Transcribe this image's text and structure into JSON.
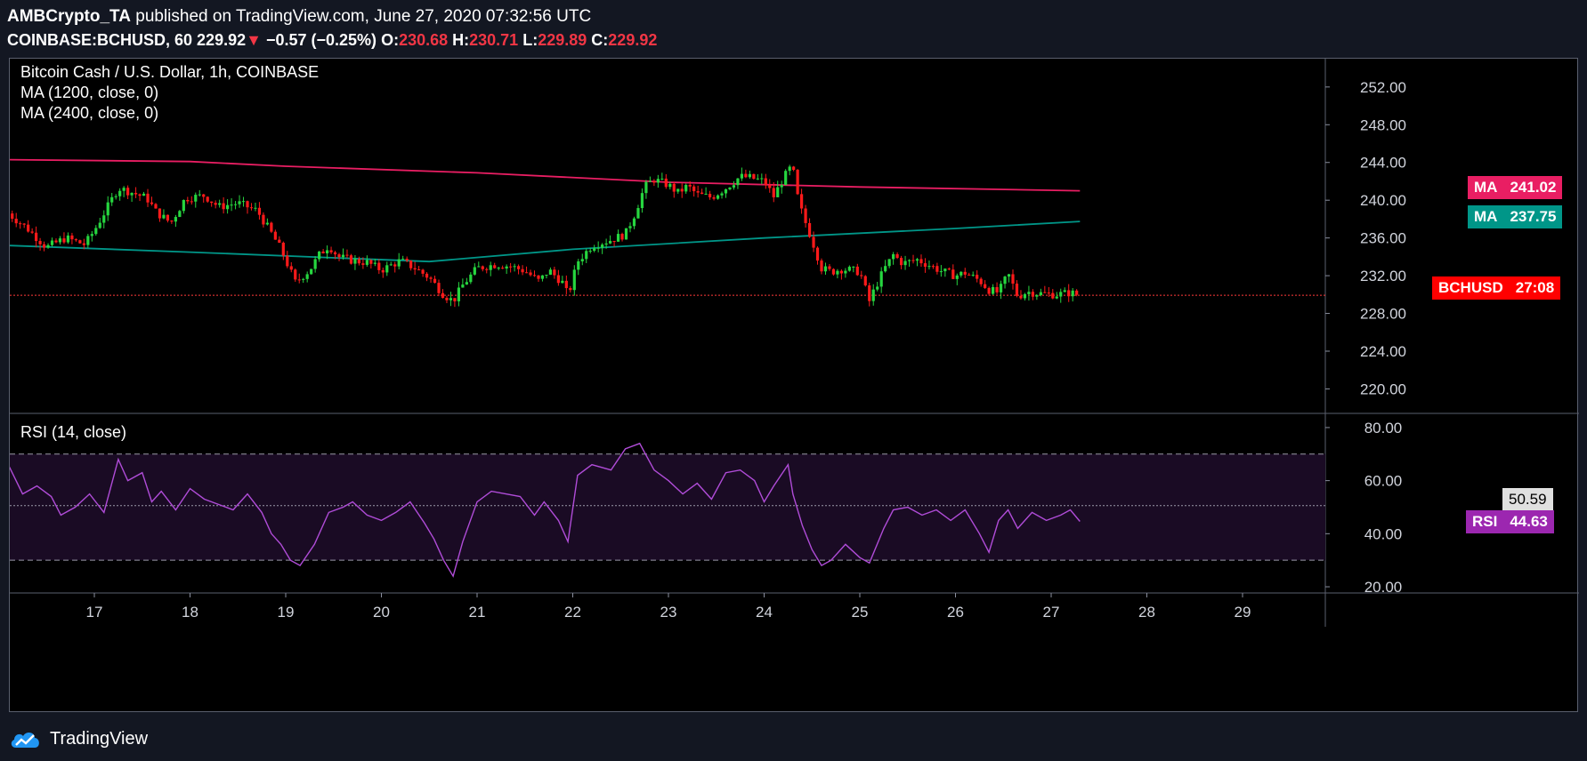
{
  "header": {
    "author": "AMBCrypto_TA",
    "published_text": " published on TradingView.com, June 27, 2020 07:32:56 UTC",
    "symbol": "COINBASE:BCHUSD, 60",
    "last": "229.92",
    "arrow": "▼",
    "change": "−0.57 (−0.25%)",
    "o_label": "O:",
    "o_value": "230.68",
    "h_label": "H:",
    "h_value": "230.71",
    "l_label": "L:",
    "l_value": "229.89",
    "c_label": "C:",
    "c_value": "229.92"
  },
  "main_pane": {
    "title": "Bitcoin Cash / U.S. Dollar, 1h, COINBASE",
    "ma1_label": "MA (1200, close, 0)",
    "ma2_label": "MA (2400, close, 0)",
    "price_ticks": [
      "252.00",
      "248.00",
      "244.00",
      "240.00",
      "236.00",
      "232.00",
      "228.00",
      "224.00",
      "220.00"
    ],
    "tags": {
      "ma_red": {
        "name": "MA",
        "value": "241.02",
        "color": "#e91e63"
      },
      "ma_teal": {
        "name": "MA",
        "value": "237.75",
        "color": "#009688"
      },
      "price": {
        "name": "BCHUSD",
        "value": "27:08",
        "color": "#ff0000"
      }
    }
  },
  "rsi_pane": {
    "title": "RSI (14, close)",
    "ticks": [
      "80.00",
      "60.00",
      "40.00",
      "20.00"
    ],
    "tags": {
      "level": {
        "value": "50.59",
        "color": "#e0e0e0"
      },
      "rsi": {
        "name": "RSI",
        "value": "44.63",
        "color": "#9c27b0"
      }
    }
  },
  "time_axis": [
    "17",
    "18",
    "19",
    "20",
    "21",
    "22",
    "23",
    "24",
    "25",
    "26",
    "27",
    "28",
    "29"
  ],
  "footer": {
    "brand": "TradingView"
  },
  "chart_data": [
    {
      "type": "candlestick",
      "title": "Bitcoin Cash / U.S. Dollar, 1h, COINBASE",
      "x_ticks": [
        "17",
        "18",
        "19",
        "20",
        "21",
        "22",
        "23",
        "24",
        "25",
        "26",
        "27",
        "28",
        "29"
      ],
      "ylim": [
        217.5,
        255
      ],
      "up_color": "#26d63f",
      "down_color": "#ff1a1a",
      "last_price": 229.92,
      "series": [
        {
          "name": "MA (1200, close, 0)",
          "color": "#e91e63",
          "points": [
            [
              16.1,
              244.3
            ],
            [
              18,
              244.1
            ],
            [
              19,
              243.6
            ],
            [
              21,
              242.9
            ],
            [
              23,
              241.9
            ],
            [
              25,
              241.4
            ],
            [
              27.3,
              241.0
            ]
          ]
        },
        {
          "name": "MA (2400, close, 0)",
          "color": "#009688",
          "points": [
            [
              16.1,
              235.2
            ],
            [
              18,
              234.5
            ],
            [
              20.5,
              233.5
            ],
            [
              22,
              234.8
            ],
            [
              24,
              236.0
            ],
            [
              26,
              237.0
            ],
            [
              27.3,
              237.75
            ]
          ]
        }
      ],
      "price_path": [
        [
          16.1,
          238.6
        ],
        [
          16.3,
          237.0
        ],
        [
          16.5,
          235.0
        ],
        [
          16.7,
          236.0
        ],
        [
          16.9,
          235.3
        ],
        [
          17.0,
          236.8
        ],
        [
          17.25,
          241.3
        ],
        [
          17.4,
          240.8
        ],
        [
          17.55,
          240.2
        ],
        [
          17.65,
          238.7
        ],
        [
          17.8,
          237.6
        ],
        [
          17.95,
          240.2
        ],
        [
          18.15,
          240.5
        ],
        [
          18.3,
          239.3
        ],
        [
          18.5,
          239.7
        ],
        [
          18.7,
          238.9
        ],
        [
          18.85,
          236.5
        ],
        [
          18.95,
          234.8
        ],
        [
          19.1,
          231.3
        ],
        [
          19.25,
          232.6
        ],
        [
          19.35,
          234.2
        ],
        [
          19.45,
          235.2
        ],
        [
          19.55,
          234.0
        ],
        [
          19.7,
          233.6
        ],
        [
          19.85,
          233.4
        ],
        [
          20.0,
          232.6
        ],
        [
          20.2,
          233.6
        ],
        [
          20.35,
          232.8
        ],
        [
          20.5,
          231.8
        ],
        [
          20.65,
          230.0
        ],
        [
          20.75,
          229.3
        ],
        [
          20.85,
          231.0
        ],
        [
          21.0,
          232.8
        ],
        [
          21.2,
          233.2
        ],
        [
          21.35,
          233.0
        ],
        [
          21.5,
          232.5
        ],
        [
          21.65,
          231.4
        ],
        [
          21.75,
          232.6
        ],
        [
          21.9,
          231.2
        ],
        [
          21.95,
          229.8
        ],
        [
          22.05,
          233.5
        ],
        [
          22.2,
          235.2
        ],
        [
          22.4,
          235.8
        ],
        [
          22.55,
          236.4
        ],
        [
          22.65,
          238.6
        ],
        [
          22.75,
          241.4
        ],
        [
          22.85,
          242.2
        ],
        [
          23.0,
          241.6
        ],
        [
          23.1,
          240.8
        ],
        [
          23.2,
          241.5
        ],
        [
          23.3,
          240.6
        ],
        [
          23.45,
          240.3
        ],
        [
          23.6,
          241.3
        ],
        [
          23.75,
          242.5
        ],
        [
          23.85,
          242.4
        ],
        [
          24.0,
          242.0
        ],
        [
          24.1,
          240.4
        ],
        [
          24.2,
          242.3
        ],
        [
          24.3,
          243.8
        ],
        [
          24.32,
          241.5
        ],
        [
          24.4,
          238.5
        ],
        [
          24.5,
          235.8
        ],
        [
          24.6,
          232.8
        ],
        [
          24.7,
          232.4
        ],
        [
          24.8,
          232.7
        ],
        [
          24.9,
          232.6
        ],
        [
          25.0,
          232.4
        ],
        [
          25.1,
          229.3
        ],
        [
          25.15,
          230.5
        ],
        [
          25.25,
          232.6
        ],
        [
          25.35,
          234.2
        ],
        [
          25.45,
          233.3
        ],
        [
          25.6,
          233.7
        ],
        [
          25.75,
          233.0
        ],
        [
          25.85,
          232.5
        ],
        [
          26.0,
          232.0
        ],
        [
          26.1,
          232.3
        ],
        [
          26.25,
          231.5
        ],
        [
          26.35,
          230.5
        ],
        [
          26.45,
          230.2
        ],
        [
          26.55,
          232.2
        ],
        [
          26.65,
          229.8
        ],
        [
          26.75,
          230.3
        ],
        [
          26.9,
          230.1
        ],
        [
          27.05,
          230.0
        ],
        [
          27.2,
          230.2
        ],
        [
          27.3,
          229.92
        ]
      ]
    },
    {
      "type": "line",
      "title": "RSI (14, close)",
      "ylim": [
        18,
        85
      ],
      "x_ticks": [
        "17",
        "18",
        "19",
        "20",
        "21",
        "22",
        "23",
        "24",
        "25",
        "26",
        "27",
        "28",
        "29"
      ],
      "bands": {
        "upper": 70,
        "middle": 50.59,
        "lower": 30
      },
      "color": "#b04cd8",
      "series": [
        {
          "name": "RSI",
          "points": [
            [
              16.1,
              66
            ],
            [
              16.25,
              55
            ],
            [
              16.4,
              58
            ],
            [
              16.55,
              54
            ],
            [
              16.65,
              47
            ],
            [
              16.8,
              50
            ],
            [
              16.95,
              55
            ],
            [
              17.1,
              48
            ],
            [
              17.25,
              68
            ],
            [
              17.35,
              60
            ],
            [
              17.5,
              63
            ],
            [
              17.6,
              52
            ],
            [
              17.7,
              56
            ],
            [
              17.85,
              49
            ],
            [
              18.0,
              57
            ],
            [
              18.15,
              53
            ],
            [
              18.3,
              51
            ],
            [
              18.45,
              49
            ],
            [
              18.6,
              55
            ],
            [
              18.75,
              48
            ],
            [
              18.85,
              40
            ],
            [
              18.95,
              36
            ],
            [
              19.05,
              30
            ],
            [
              19.15,
              28
            ],
            [
              19.3,
              36
            ],
            [
              19.45,
              48
            ],
            [
              19.6,
              50
            ],
            [
              19.7,
              52
            ],
            [
              19.85,
              47
            ],
            [
              20.0,
              45
            ],
            [
              20.15,
              48
            ],
            [
              20.3,
              52
            ],
            [
              20.45,
              44
            ],
            [
              20.55,
              38
            ],
            [
              20.65,
              30
            ],
            [
              20.75,
              24
            ],
            [
              20.85,
              37
            ],
            [
              21.0,
              52
            ],
            [
              21.15,
              56
            ],
            [
              21.3,
              55
            ],
            [
              21.45,
              54
            ],
            [
              21.6,
              47
            ],
            [
              21.7,
              52
            ],
            [
              21.85,
              45
            ],
            [
              21.95,
              37
            ],
            [
              22.05,
              62
            ],
            [
              22.2,
              66
            ],
            [
              22.4,
              64
            ],
            [
              22.55,
              72
            ],
            [
              22.7,
              74
            ],
            [
              22.85,
              64
            ],
            [
              23.0,
              60
            ],
            [
              23.15,
              55
            ],
            [
              23.3,
              59
            ],
            [
              23.45,
              53
            ],
            [
              23.6,
              63
            ],
            [
              23.75,
              64
            ],
            [
              23.9,
              60
            ],
            [
              24.0,
              52
            ],
            [
              24.1,
              58
            ],
            [
              24.25,
              66
            ],
            [
              24.3,
              55
            ],
            [
              24.4,
              43
            ],
            [
              24.5,
              34
            ],
            [
              24.6,
              28
            ],
            [
              24.7,
              30
            ],
            [
              24.85,
              36
            ],
            [
              25.0,
              31
            ],
            [
              25.1,
              29
            ],
            [
              25.25,
              42
            ],
            [
              25.35,
              49
            ],
            [
              25.5,
              50
            ],
            [
              25.65,
              47
            ],
            [
              25.8,
              49
            ],
            [
              25.95,
              45
            ],
            [
              26.1,
              49
            ],
            [
              26.25,
              40
            ],
            [
              26.35,
              33
            ],
            [
              26.45,
              45
            ],
            [
              26.55,
              49
            ],
            [
              26.65,
              42
            ],
            [
              26.8,
              48
            ],
            [
              26.95,
              45
            ],
            [
              27.1,
              47
            ],
            [
              27.2,
              49
            ],
            [
              27.3,
              44.63
            ]
          ]
        }
      ]
    }
  ]
}
